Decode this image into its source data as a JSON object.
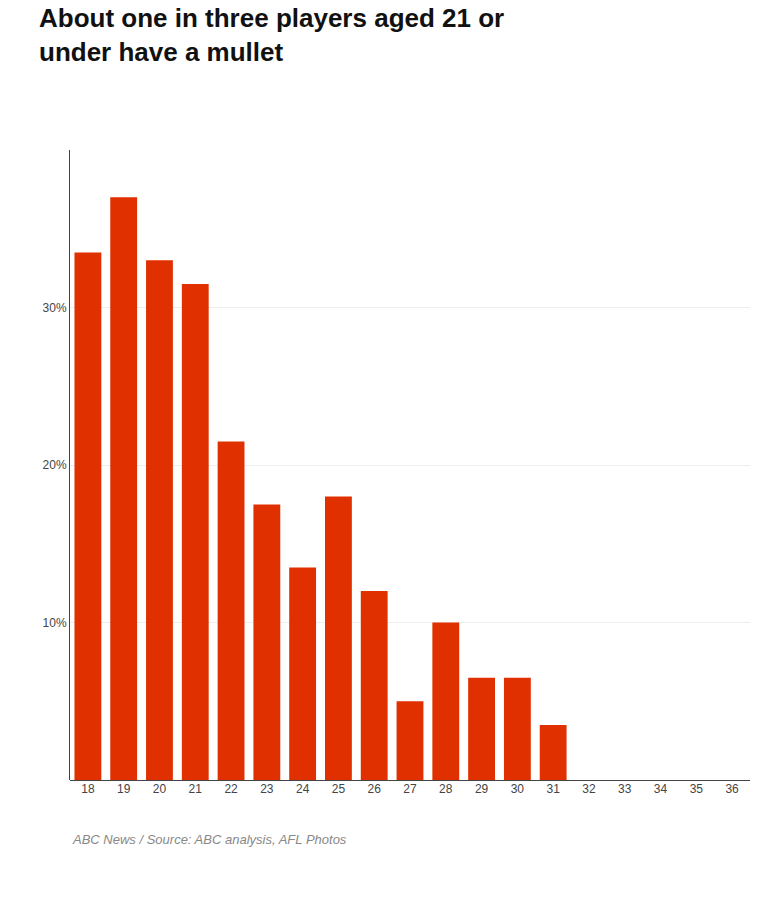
{
  "chart_data": {
    "type": "bar",
    "title": "About one in three players aged 21 or\nunder have a mullet",
    "categories": [
      "18",
      "19",
      "20",
      "21",
      "22",
      "23",
      "24",
      "25",
      "26",
      "27",
      "28",
      "29",
      "30",
      "31",
      "32",
      "33",
      "34",
      "35",
      "36"
    ],
    "values": [
      33.5,
      37.0,
      33.0,
      31.5,
      21.5,
      17.5,
      13.5,
      18.0,
      12.0,
      5.0,
      10.0,
      6.5,
      6.5,
      3.5,
      0,
      0,
      0,
      0,
      0
    ],
    "color": "#E03000",
    "ylim": [
      0,
      40
    ],
    "yticks": [
      {
        "value": 10,
        "label": "10%"
      },
      {
        "value": 20,
        "label": "20%"
      },
      {
        "value": 30,
        "label": "30%"
      }
    ],
    "grid": true,
    "annotations": [
      "ABC News / Source: ABC analysis, AFL Photos"
    ]
  }
}
